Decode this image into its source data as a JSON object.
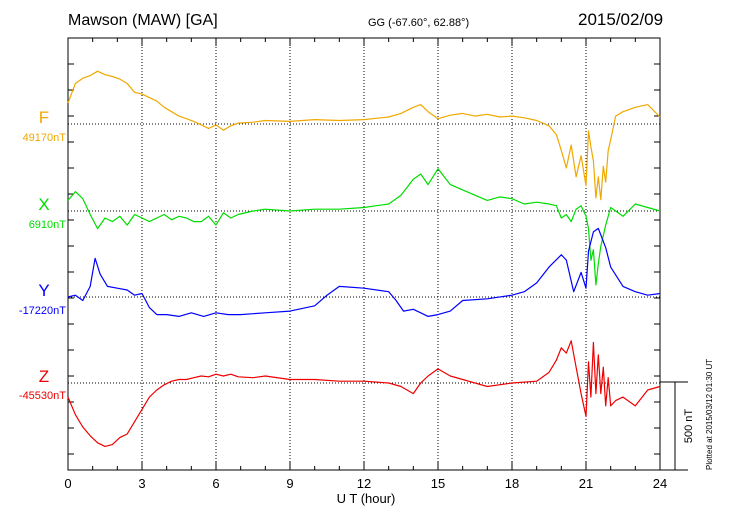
{
  "header": {
    "station": "Mawson (MAW)  [GA]",
    "coords": "GG (-67.60°,  62.88°)",
    "date": "2015/02/09"
  },
  "footer": {
    "plotted": "Plotted at 2015/03/12 01:30 UT"
  },
  "chart_data": {
    "type": "line",
    "xlabel": "U T (hour)",
    "xlim": [
      0,
      24
    ],
    "xticks": [
      "0",
      "3",
      "6",
      "9",
      "12",
      "15",
      "18",
      "21",
      "24"
    ],
    "grid": true,
    "scale_bar": {
      "label": "500 nT",
      "value_nT": 500
    },
    "series": [
      {
        "name": "F",
        "baseline": "49170nT",
        "color": "#f0a800",
        "x": [
          0,
          0.3,
          0.6,
          0.9,
          1.2,
          1.5,
          1.8,
          2.1,
          2.4,
          2.7,
          3.0,
          3.3,
          3.6,
          3.9,
          4.2,
          4.5,
          4.8,
          5.1,
          5.4,
          5.7,
          6.0,
          6.3,
          6.6,
          6.9,
          7.5,
          8.0,
          9.0,
          10.0,
          11.0,
          12.0,
          13.0,
          13.5,
          14.0,
          14.3,
          14.6,
          15.0,
          15.5,
          16.0,
          16.5,
          17.0,
          17.5,
          18.0,
          18.5,
          19.0,
          19.5,
          19.8,
          20.0,
          20.2,
          20.4,
          20.6,
          20.8,
          21.0,
          21.1,
          21.2,
          21.3,
          21.4,
          21.5,
          21.6,
          21.7,
          21.8,
          21.9,
          22.0,
          22.2,
          22.5,
          23.0,
          23.5,
          24.0
        ],
        "y": [
          120,
          230,
          260,
          275,
          300,
          280,
          270,
          255,
          230,
          180,
          170,
          150,
          130,
          95,
          70,
          45,
          30,
          15,
          -5,
          -25,
          -5,
          -35,
          -10,
          5,
          10,
          20,
          15,
          25,
          20,
          25,
          40,
          60,
          95,
          110,
          70,
          30,
          50,
          60,
          45,
          55,
          40,
          45,
          35,
          20,
          -10,
          -60,
          -150,
          -250,
          -120,
          -300,
          -180,
          -350,
          -40,
          -130,
          -210,
          -420,
          -300,
          -430,
          -240,
          -330,
          -150,
          -90,
          45,
          70,
          95,
          110,
          40
        ]
      },
      {
        "name": "X",
        "baseline": "6910nT",
        "color": "#00dd00",
        "x": [
          0,
          0.3,
          0.6,
          0.9,
          1.2,
          1.5,
          1.8,
          2.1,
          2.4,
          2.7,
          3.0,
          3.3,
          3.6,
          3.9,
          4.2,
          4.5,
          4.8,
          5.1,
          5.4,
          5.7,
          6.0,
          6.3,
          6.6,
          6.9,
          7.5,
          8.0,
          9.0,
          10.0,
          11.0,
          12.0,
          12.5,
          13.0,
          13.5,
          14.0,
          14.3,
          14.6,
          15.0,
          15.5,
          16.0,
          16.5,
          17.0,
          17.5,
          18.0,
          18.5,
          19.0,
          19.5,
          19.8,
          20.0,
          20.2,
          20.4,
          20.6,
          20.8,
          21.0,
          21.1,
          21.2,
          21.3,
          21.4,
          21.5,
          21.6,
          21.8,
          22.0,
          22.5,
          23.0,
          23.5,
          24.0
        ],
        "y": [
          60,
          110,
          70,
          -20,
          -100,
          -40,
          -60,
          -30,
          -80,
          -20,
          -40,
          -60,
          -40,
          -20,
          -50,
          -30,
          -40,
          -60,
          -60,
          -30,
          -80,
          -10,
          -40,
          -20,
          0,
          10,
          0,
          10,
          10,
          20,
          30,
          40,
          90,
          180,
          210,
          150,
          240,
          150,
          120,
          90,
          60,
          80,
          70,
          40,
          50,
          40,
          30,
          -40,
          -20,
          -60,
          10,
          30,
          -30,
          -100,
          -280,
          -220,
          -420,
          -300,
          -200,
          -80,
          20,
          -30,
          40,
          20,
          0
        ]
      },
      {
        "name": "Y",
        "baseline": "-17220nT",
        "color": "#0000ff",
        "x": [
          0,
          0.3,
          0.6,
          0.9,
          1.1,
          1.3,
          1.6,
          2.0,
          2.4,
          2.7,
          3.0,
          3.3,
          3.6,
          4.0,
          4.5,
          5.0,
          5.5,
          6.0,
          6.5,
          7.0,
          8.0,
          9.0,
          10.0,
          10.5,
          11.0,
          12.0,
          13.0,
          13.3,
          13.6,
          14.0,
          14.3,
          14.6,
          15.0,
          15.5,
          16.0,
          17.0,
          18.0,
          18.5,
          19.0,
          19.5,
          20.0,
          20.2,
          20.5,
          20.8,
          21.0,
          21.1,
          21.3,
          21.5,
          21.8,
          22.0,
          22.5,
          23.0,
          23.5,
          24.0
        ],
        "y": [
          0,
          10,
          -20,
          60,
          220,
          130,
          60,
          50,
          40,
          10,
          20,
          -60,
          -100,
          -100,
          -110,
          -90,
          -110,
          -90,
          -100,
          -100,
          -90,
          -80,
          -50,
          10,
          60,
          50,
          30,
          -20,
          -80,
          -70,
          -90,
          -110,
          -100,
          -80,
          -20,
          -10,
          10,
          30,
          80,
          170,
          240,
          210,
          30,
          140,
          50,
          260,
          370,
          390,
          280,
          170,
          60,
          30,
          10,
          20
        ]
      },
      {
        "name": "Z",
        "baseline": "-45530nT",
        "color": "#ee0000",
        "x": [
          0,
          0.3,
          0.6,
          0.9,
          1.2,
          1.5,
          1.8,
          2.1,
          2.4,
          2.7,
          3.0,
          3.3,
          3.6,
          3.9,
          4.2,
          4.5,
          4.8,
          5.1,
          5.4,
          5.7,
          6.0,
          6.3,
          6.6,
          6.9,
          7.5,
          8.0,
          9.0,
          10.0,
          11.0,
          12.0,
          13.0,
          13.5,
          14.0,
          14.3,
          14.6,
          15.0,
          15.5,
          16.0,
          17.0,
          18.0,
          19.0,
          19.5,
          19.8,
          20.0,
          20.2,
          20.4,
          20.6,
          20.8,
          21.0,
          21.1,
          21.2,
          21.3,
          21.4,
          21.5,
          21.6,
          21.7,
          21.8,
          21.9,
          22.0,
          22.2,
          22.5,
          23.0,
          23.5,
          24.0
        ],
        "y": [
          -80,
          -180,
          -250,
          -300,
          -340,
          -360,
          -350,
          -310,
          -290,
          -220,
          -150,
          -80,
          -40,
          -10,
          10,
          20,
          20,
          30,
          40,
          35,
          50,
          40,
          50,
          35,
          30,
          40,
          20,
          20,
          10,
          10,
          0,
          -20,
          -60,
          0,
          40,
          80,
          40,
          20,
          -20,
          0,
          10,
          60,
          130,
          200,
          170,
          240,
          90,
          -60,
          -190,
          120,
          -80,
          230,
          -60,
          160,
          -60,
          90,
          -130,
          30,
          -130,
          -100,
          -80,
          -130,
          -40,
          -20
        ]
      }
    ]
  }
}
